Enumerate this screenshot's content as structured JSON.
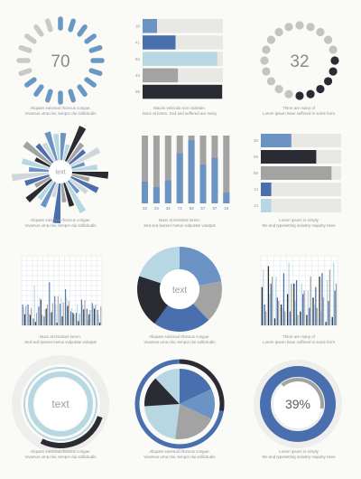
{
  "colors": {
    "blue": "#4a6fae",
    "mid_blue": "#6b93c4",
    "light_blue": "#b7d8e3",
    "dark": "#2a2b33",
    "gray": "#a3a3a3",
    "light_gray": "#e9e8e4",
    "caption": "#8a8f96"
  },
  "captions": [
    {
      "line1": "Aliquam euismod rhoncus congue.",
      "line2": "Vivamus urna nisi, tempor dui sollicitudin"
    },
    {
      "line1": "Mauris vehicula non molestie.",
      "line2": "Nunc at lorem. Sed sed  suffered  are many"
    },
    {
      "line1": "There are many  of",
      "line2": "Lorem Ipsum  have suffered  in some form"
    },
    {
      "line1": "Aliquam euismod rhoncus congue.",
      "line2": "Vivamus urna nisi, tempor dui sollicitudin"
    },
    {
      "line1": "Nunc at tincidunt lorem.",
      "line2": "Sed sed laoreet metus vulputate volutpat"
    },
    {
      "line1": "Lorem Ipsum is simply",
      "line2": "the  and typesetting industry majority have"
    },
    {
      "line1": "Nunc at tincidunt lorem.",
      "line2": "Sed sed laoreet metus vulputate volutpat"
    },
    {
      "line1": "Aliquam euismod rhoncus congue.",
      "line2": "Vivamus urna nisi, tempor dui sollicitudin"
    },
    {
      "line1": "There are many  of",
      "line2": "Lorem Ipsum  have suffered  in some form"
    },
    {
      "line1": "Aliquam euismod rhoncus congue.",
      "line2": "Vivamus urna nisi, tempor dui sollicitudin"
    },
    {
      "line1": "Aliquam euismod rhoncus congue.",
      "line2": "Vivamus urna nisi, tempor dui sollicitudin"
    },
    {
      "line1": "Lorem Ipsum is simply",
      "line2": "the  and typesetting industry majority have"
    }
  ],
  "chart_data": [
    {
      "id": "dots70",
      "type": "dot-ring",
      "center_label": "70",
      "value": 70,
      "dots": 20
    },
    {
      "id": "hbar1",
      "type": "bar",
      "orientation": "horizontal",
      "categories": [
        "18",
        "41",
        "93",
        "44",
        "99"
      ],
      "values": [
        18,
        41,
        93,
        44,
        99
      ],
      "bar_colors": [
        "mid_blue",
        "blue",
        "light_blue",
        "gray",
        "dark"
      ],
      "xlim": [
        0,
        100
      ]
    },
    {
      "id": "dots32",
      "type": "dot-ring",
      "center_label": "32",
      "value": 32,
      "dots": 20
    },
    {
      "id": "sunburst",
      "type": "radial-bar",
      "center_label": "text",
      "spokes": 32
    },
    {
      "id": "vbars",
      "type": "bar",
      "orientation": "vertical",
      "categories": [
        "32",
        "24",
        "34",
        "74",
        "93",
        "57",
        "67",
        "16"
      ],
      "values": [
        32,
        24,
        34,
        74,
        93,
        57,
        67,
        16
      ],
      "ylim": [
        0,
        100
      ]
    },
    {
      "id": "hbar2",
      "type": "bar",
      "orientation": "horizontal",
      "categories": [
        "38",
        "69",
        "88",
        "13",
        "13"
      ],
      "values": [
        38,
        69,
        88,
        13,
        13
      ],
      "bar_colors": [
        "mid_blue",
        "dark",
        "gray",
        "blue",
        "light_blue"
      ],
      "xlim": [
        0,
        100
      ]
    },
    {
      "id": "grouped1",
      "type": "bar",
      "orientation": "vertical",
      "series": [
        {
          "color": "blue",
          "values": [
            30,
            30,
            10,
            27,
            13,
            62,
            42,
            31,
            52,
            20,
            18,
            37,
            24,
            32,
            22
          ]
        },
        {
          "color": "light_blue",
          "values": [
            26,
            18,
            57,
            40,
            23,
            18,
            30,
            40,
            40,
            25,
            30,
            30,
            8,
            28,
            14
          ]
        },
        {
          "color": "dark",
          "values": [
            16,
            15,
            5,
            37,
            24,
            19,
            4,
            13,
            28,
            18,
            6,
            23,
            16,
            24,
            4
          ]
        },
        {
          "color": "gray",
          "values": [
            28,
            25,
            18,
            15,
            30,
            32,
            42,
            33,
            35,
            16,
            17,
            36,
            22,
            30,
            27
          ]
        }
      ]
    },
    {
      "id": "donut",
      "type": "pie",
      "center_label": "text",
      "values": [
        22,
        16,
        22,
        20,
        20
      ],
      "slice_colors": [
        "mid_blue",
        "gray",
        "blue",
        "dark",
        "light_blue"
      ]
    },
    {
      "id": "grouped2",
      "type": "bar",
      "orientation": "vertical",
      "series": [
        {
          "color": "dark",
          "values": [
            55,
            85,
            10,
            30,
            45,
            60,
            20,
            15,
            40,
            70,
            5,
            12
          ]
        },
        {
          "color": "light_blue",
          "values": [
            80,
            45,
            70,
            25,
            90,
            35,
            60,
            50,
            30,
            20,
            65,
            90
          ]
        },
        {
          "color": "blue",
          "values": [
            30,
            60,
            40,
            75,
            20,
            65,
            45,
            25,
            55,
            75,
            35,
            50
          ]
        },
        {
          "color": "gray",
          "values": [
            20,
            70,
            35,
            20,
            60,
            15,
            50,
            70,
            25,
            40,
            80,
            60
          ]
        }
      ]
    },
    {
      "id": "rings",
      "type": "radial-bar",
      "center_label": "text",
      "values": [
        70,
        40,
        90
      ],
      "ring_colors": [
        "dark",
        "light_blue",
        "light_blue"
      ]
    },
    {
      "id": "pie2",
      "type": "pie",
      "values": [
        18,
        14,
        20,
        22,
        14,
        12
      ],
      "slice_colors": [
        "blue",
        "mid_blue",
        "gray",
        "light_blue",
        "dark",
        "light_blue"
      ]
    },
    {
      "id": "gauge",
      "type": "radial-bar",
      "center_label": "39%",
      "value": 39
    }
  ]
}
